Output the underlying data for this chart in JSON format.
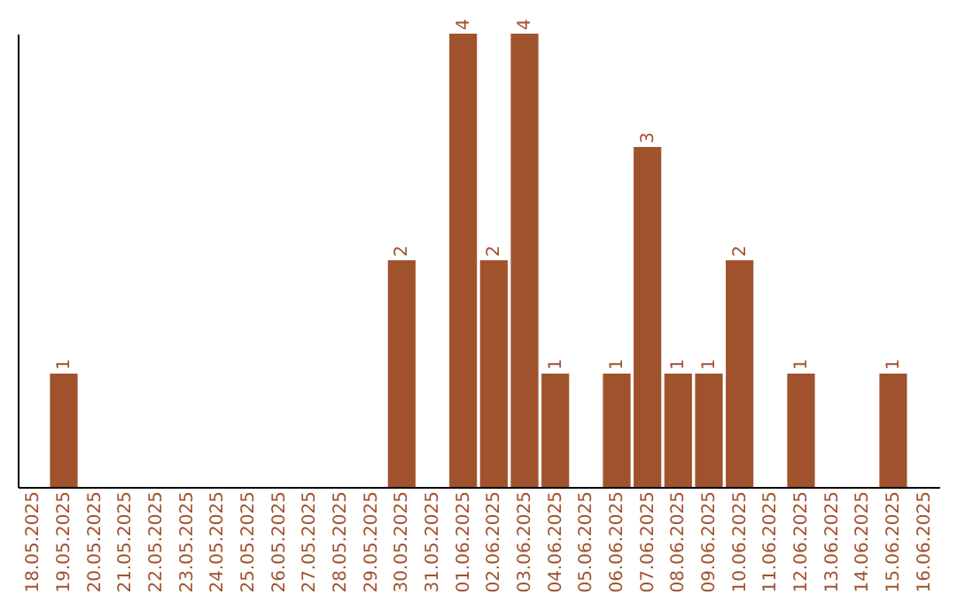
{
  "chart_data": {
    "type": "bar",
    "categories": [
      "18.05.2025",
      "19.05.2025",
      "20.05.2025",
      "21.05.2025",
      "22.05.2025",
      "23.05.2025",
      "24.05.2025",
      "25.05.2025",
      "26.05.2025",
      "27.05.2025",
      "28.05.2025",
      "29.05.2025",
      "30.05.2025",
      "31.05.2025",
      "01.06.2025",
      "02.06.2025",
      "03.06.2025",
      "04.06.2025",
      "05.06.2025",
      "06.06.2025",
      "07.06.2025",
      "08.06.2025",
      "09.06.2025",
      "10.06.2025",
      "11.06.2025",
      "12.06.2025",
      "13.06.2025",
      "14.06.2025",
      "15.06.2025",
      "16.06.2025"
    ],
    "values": [
      null,
      1,
      null,
      null,
      null,
      null,
      null,
      null,
      null,
      null,
      null,
      null,
      2,
      null,
      4,
      2,
      4,
      1,
      null,
      1,
      3,
      1,
      1,
      2,
      null,
      1,
      null,
      null,
      1,
      null
    ],
    "color": "#a0522d",
    "data_labels": true,
    "tick_labels": "x"
  }
}
